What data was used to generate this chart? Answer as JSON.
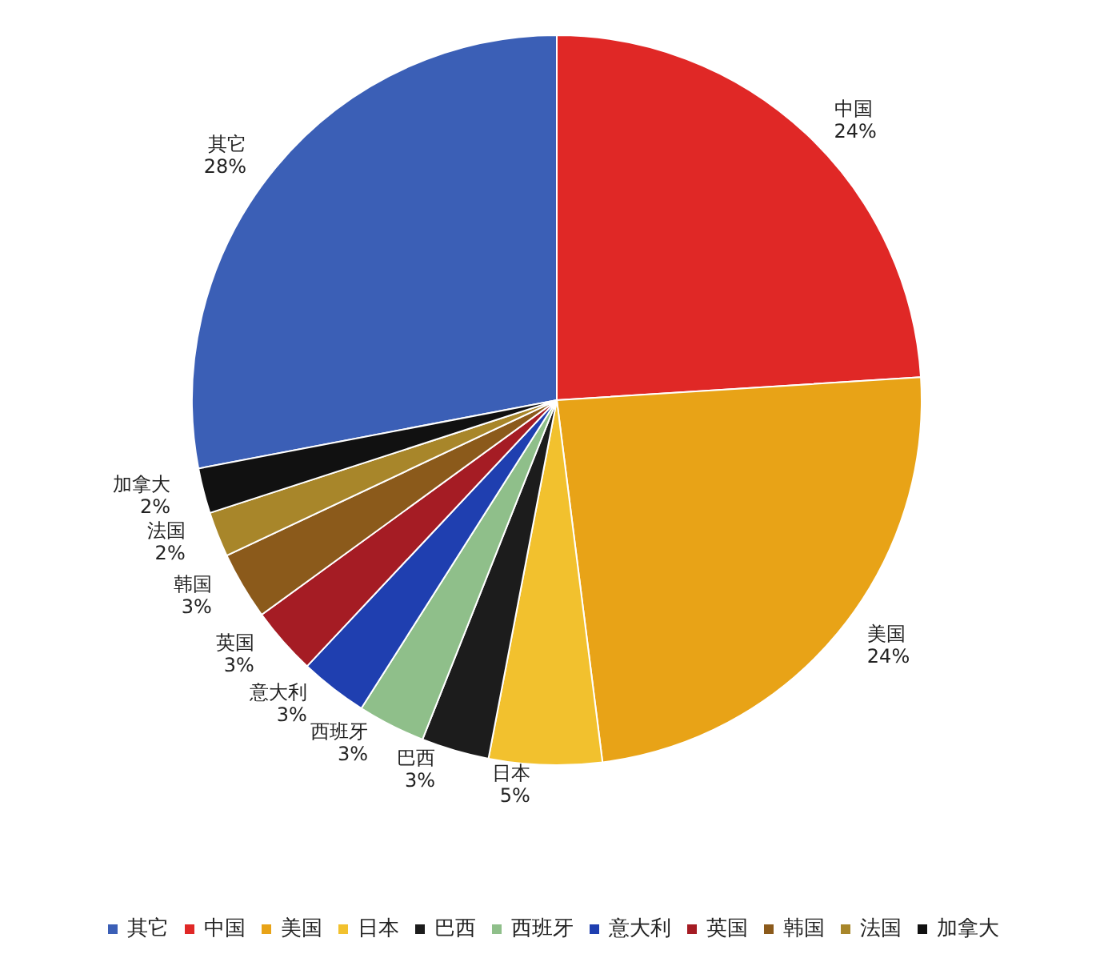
{
  "chart_data": {
    "type": "pie",
    "categories": [
      "其它",
      "中国",
      "美国",
      "日本",
      "巴西",
      "西班牙",
      "意大利",
      "英国",
      "韩国",
      "法国",
      "加拿大"
    ],
    "values": [
      28,
      24,
      24,
      5,
      3,
      3,
      3,
      3,
      3,
      2,
      2
    ],
    "value_labels": [
      "28%",
      "24%",
      "24%",
      "5%",
      "3%",
      "3%",
      "3%",
      "3%",
      "3%",
      "2%",
      "2%"
    ],
    "colors": [
      "#3b5fb6",
      "#e02826",
      "#e8a317",
      "#f2c12e",
      "#1c1c1c",
      "#8fbf8a",
      "#1f3fb0",
      "#a51c24",
      "#8b5a1b",
      "#a8862a",
      "#111111"
    ],
    "legend": "bottom"
  }
}
